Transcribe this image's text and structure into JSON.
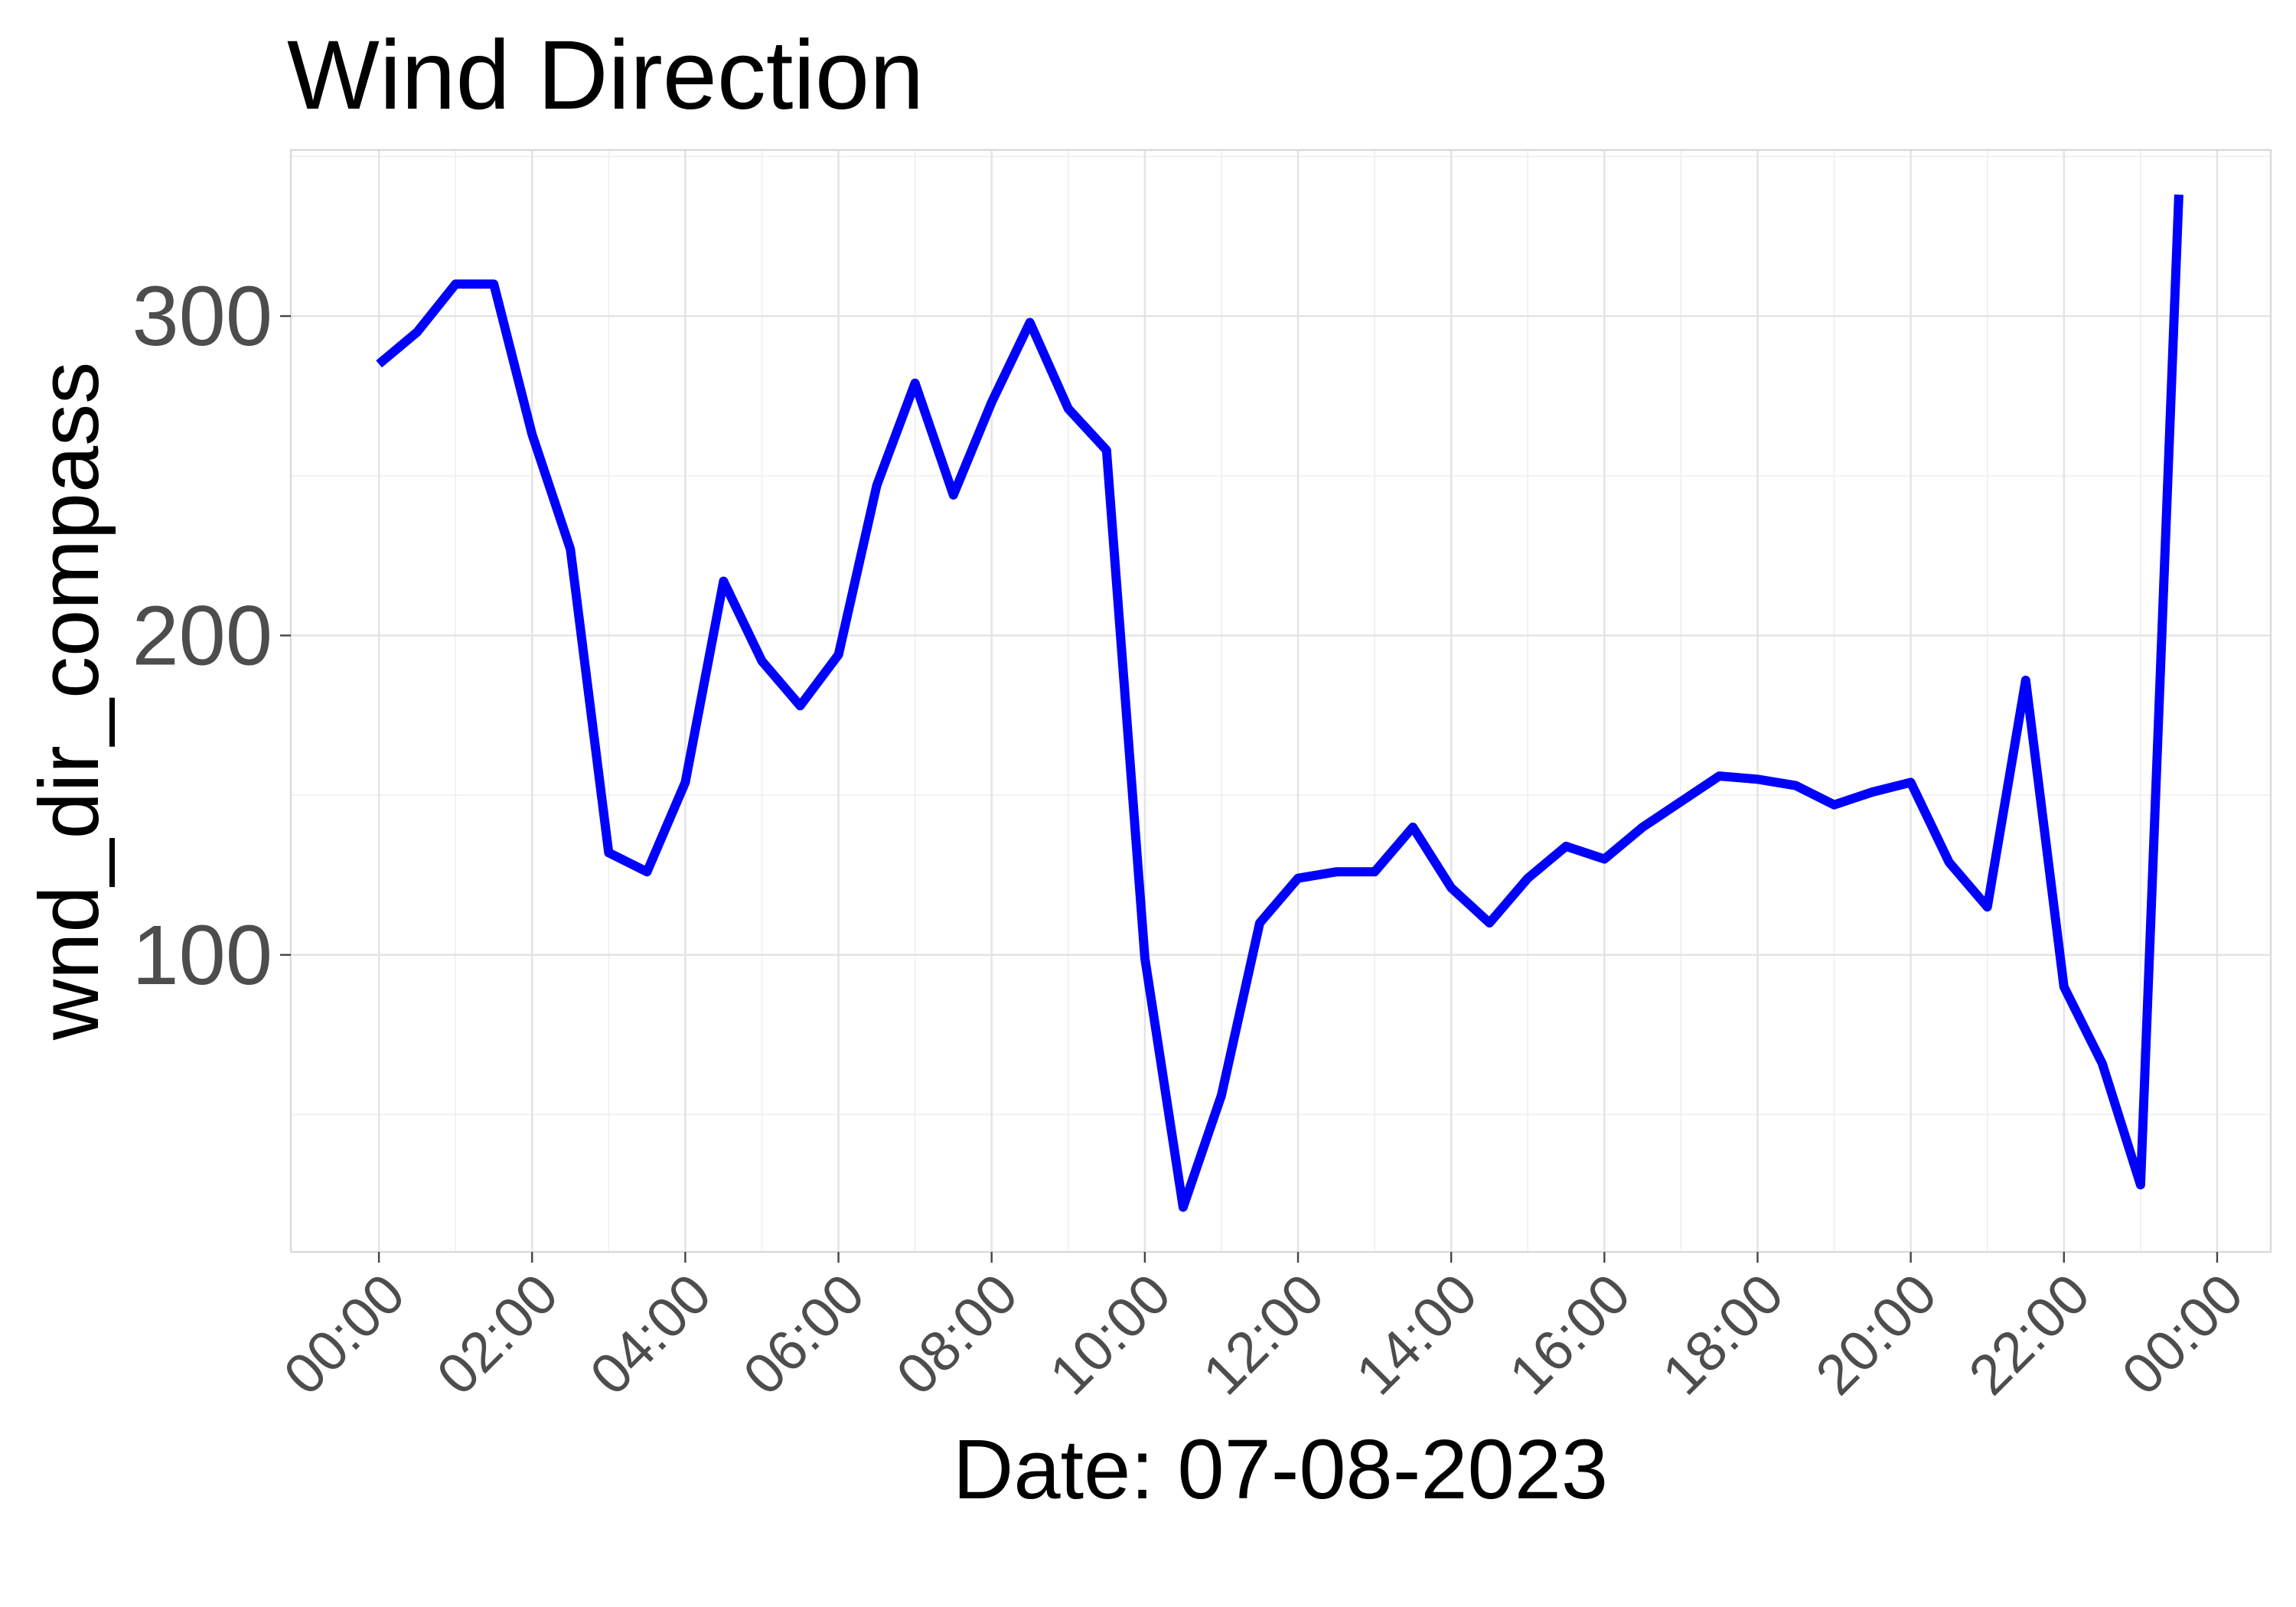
{
  "chart_data": {
    "type": "line",
    "title": "Wind Direction",
    "xlabel": "Date: 07-08-2023",
    "ylabel": "wnd_dir_compass",
    "x_tick_labels": [
      "00:00",
      "02:00",
      "04:00",
      "06:00",
      "08:00",
      "10:00",
      "12:00",
      "14:00",
      "16:00",
      "18:00",
      "20:00",
      "22:00",
      "00:00"
    ],
    "x_tick_hours": [
      0,
      2,
      4,
      6,
      8,
      10,
      12,
      14,
      16,
      18,
      20,
      22,
      24
    ],
    "y_ticks": [
      100,
      200,
      300
    ],
    "y_tick_labels": [
      "100",
      "200",
      "300"
    ],
    "xlim": [
      -1.15,
      24.7
    ],
    "ylim": [
      7,
      352
    ],
    "grid": true,
    "legend": "none",
    "series": [
      {
        "color": "#0000ff",
        "x": [
          0,
          0.5,
          1,
          1.5,
          2,
          2.5,
          3,
          3.5,
          4,
          4.5,
          5,
          5.5,
          6,
          6.5,
          7,
          7.5,
          8,
          8.5,
          9,
          9.5,
          10,
          10.5,
          11,
          11.5,
          12,
          12.5,
          13,
          13.5,
          14,
          14.5,
          15,
          15.5,
          16,
          16.5,
          17,
          17.5,
          18,
          18.5,
          19,
          19.5,
          20,
          20.5,
          21,
          21.5,
          22,
          22.5,
          23,
          23.5
        ],
        "values": [
          285,
          295,
          310,
          310,
          263,
          227,
          132,
          126,
          154,
          217,
          192,
          178,
          194,
          247,
          279,
          244,
          273,
          298,
          271,
          258,
          99,
          21,
          56,
          110,
          124,
          126,
          126,
          140,
          121,
          110,
          124,
          134,
          130,
          140,
          148,
          156,
          155,
          153,
          147,
          151,
          154,
          129,
          115,
          186,
          90,
          66,
          28,
          338
        ]
      }
    ]
  }
}
